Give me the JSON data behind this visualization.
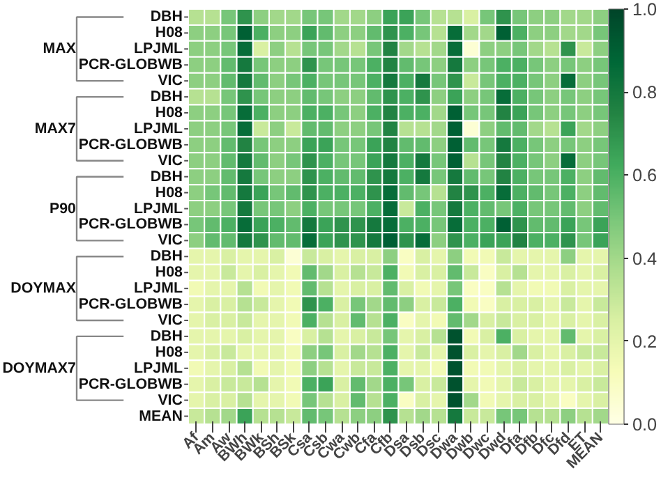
{
  "chart_data": {
    "type": "heatmap",
    "categories": [
      "Af",
      "Am",
      "Aw",
      "BWh",
      "BWk",
      "BSh",
      "BSk",
      "Csa",
      "Csb",
      "Cwa",
      "Cwb",
      "Cfa",
      "Cfb",
      "Dsa",
      "Dsb",
      "Dsc",
      "Dwa",
      "Dwb",
      "Dwc",
      "Dwd",
      "Dfa",
      "Dfb",
      "Dfc",
      "Dfd",
      "ET",
      "MEAN"
    ],
    "y_categories": [
      "DBH",
      "H08",
      "LPJML",
      "PCR-GLOBWB",
      "VIC",
      "DBH",
      "H08",
      "LPJML",
      "PCR-GLOBWB",
      "VIC",
      "DBH",
      "H08",
      "LPJML",
      "PCR-GLOBWB",
      "VIC",
      "DBH",
      "H08",
      "LPJML",
      "PCR-GLOBWB",
      "VIC",
      "DBH",
      "H08",
      "LPJML",
      "PCR-GLOBWB",
      "VIC",
      "MEAN"
    ],
    "annotations": [
      "MAX",
      "MAX7",
      "P90",
      "DOYMAX",
      "DOYMAX7"
    ],
    "cells": [
      [
        0.35,
        0.35,
        0.5,
        0.7,
        0.45,
        0.4,
        0.4,
        0.5,
        0.5,
        0.4,
        0.4,
        0.45,
        0.65,
        0.65,
        0.5,
        0.35,
        0.35,
        0.25,
        0.5,
        0.7,
        0.5,
        0.45,
        0.45,
        0.4,
        0.4,
        0.45
      ],
      [
        0.45,
        0.45,
        0.5,
        0.9,
        0.6,
        0.45,
        0.45,
        0.65,
        0.55,
        0.45,
        0.45,
        0.55,
        0.7,
        0.6,
        0.5,
        0.35,
        0.85,
        0.4,
        0.4,
        0.9,
        0.6,
        0.45,
        0.45,
        0.4,
        0.4,
        0.5
      ],
      [
        0.45,
        0.45,
        0.5,
        0.85,
        0.25,
        0.45,
        0.35,
        0.5,
        0.5,
        0.4,
        0.35,
        0.5,
        0.75,
        0.4,
        0.35,
        0.4,
        0.85,
        0.05,
        0.45,
        0.45,
        0.5,
        0.4,
        0.35,
        0.7,
        0.3,
        0.45
      ],
      [
        0.45,
        0.45,
        0.55,
        0.8,
        0.5,
        0.45,
        0.45,
        0.7,
        0.5,
        0.5,
        0.5,
        0.6,
        0.75,
        0.55,
        0.5,
        0.45,
        0.8,
        0.45,
        0.5,
        0.6,
        0.6,
        0.5,
        0.45,
        0.5,
        0.45,
        0.5
      ],
      [
        0.45,
        0.45,
        0.55,
        0.8,
        0.55,
        0.45,
        0.5,
        0.6,
        0.5,
        0.5,
        0.5,
        0.6,
        0.8,
        0.6,
        0.8,
        0.5,
        0.7,
        0.3,
        0.5,
        0.6,
        0.6,
        0.5,
        0.45,
        0.85,
        0.45,
        0.5
      ],
      [
        0.35,
        0.35,
        0.5,
        0.7,
        0.5,
        0.45,
        0.45,
        0.55,
        0.5,
        0.45,
        0.45,
        0.55,
        0.7,
        0.6,
        0.7,
        0.45,
        0.65,
        0.45,
        0.5,
        0.85,
        0.6,
        0.5,
        0.45,
        0.5,
        0.45,
        0.5
      ],
      [
        0.45,
        0.45,
        0.5,
        0.85,
        0.6,
        0.45,
        0.45,
        0.6,
        0.6,
        0.5,
        0.45,
        0.6,
        0.75,
        0.6,
        0.6,
        0.4,
        0.9,
        0.5,
        0.5,
        0.75,
        0.65,
        0.5,
        0.45,
        0.5,
        0.45,
        0.5
      ],
      [
        0.45,
        0.45,
        0.5,
        0.85,
        0.3,
        0.45,
        0.3,
        0.55,
        0.55,
        0.45,
        0.45,
        0.5,
        0.75,
        0.35,
        0.35,
        0.4,
        0.9,
        0.05,
        0.45,
        0.55,
        0.55,
        0.4,
        0.35,
        0.65,
        0.4,
        0.45
      ],
      [
        0.45,
        0.45,
        0.55,
        0.75,
        0.5,
        0.45,
        0.45,
        0.65,
        0.65,
        0.5,
        0.5,
        0.65,
        0.75,
        0.55,
        0.55,
        0.45,
        0.9,
        0.55,
        0.5,
        0.8,
        0.6,
        0.5,
        0.45,
        0.5,
        0.45,
        0.5
      ],
      [
        0.45,
        0.45,
        0.55,
        0.8,
        0.55,
        0.45,
        0.5,
        0.7,
        0.6,
        0.5,
        0.5,
        0.65,
        0.8,
        0.6,
        0.8,
        0.5,
        0.9,
        0.35,
        0.5,
        0.75,
        0.6,
        0.5,
        0.45,
        0.85,
        0.45,
        0.5
      ],
      [
        0.45,
        0.45,
        0.55,
        0.8,
        0.5,
        0.45,
        0.45,
        0.7,
        0.6,
        0.55,
        0.55,
        0.7,
        0.8,
        0.6,
        0.8,
        0.5,
        0.8,
        0.55,
        0.5,
        0.75,
        0.6,
        0.5,
        0.5,
        0.6,
        0.45,
        0.55
      ],
      [
        0.45,
        0.5,
        0.55,
        0.8,
        0.65,
        0.5,
        0.55,
        0.7,
        0.6,
        0.6,
        0.6,
        0.7,
        0.85,
        0.55,
        0.5,
        0.35,
        0.75,
        0.7,
        0.6,
        0.85,
        0.6,
        0.55,
        0.5,
        0.6,
        0.45,
        0.55
      ],
      [
        0.45,
        0.45,
        0.5,
        0.8,
        0.5,
        0.5,
        0.45,
        0.6,
        0.5,
        0.5,
        0.5,
        0.6,
        0.85,
        0.3,
        0.6,
        0.5,
        0.8,
        0.6,
        0.55,
        0.5,
        0.6,
        0.5,
        0.5,
        0.55,
        0.45,
        0.55
      ],
      [
        0.5,
        0.55,
        0.6,
        0.85,
        0.65,
        0.6,
        0.55,
        0.8,
        0.65,
        0.7,
        0.7,
        0.8,
        0.85,
        0.6,
        0.6,
        0.5,
        0.85,
        0.6,
        0.6,
        0.9,
        0.7,
        0.55,
        0.55,
        0.65,
        0.5,
        0.65
      ],
      [
        0.45,
        0.55,
        0.55,
        0.8,
        0.7,
        0.55,
        0.55,
        0.85,
        0.65,
        0.7,
        0.7,
        0.8,
        0.9,
        0.7,
        0.85,
        0.45,
        0.7,
        0.6,
        0.65,
        0.65,
        0.75,
        0.6,
        0.6,
        0.7,
        0.5,
        0.65
      ],
      [
        0.2,
        0.2,
        0.25,
        0.2,
        0.2,
        0.25,
        0.05,
        0.3,
        0.25,
        0.2,
        0.25,
        0.25,
        0.45,
        0.1,
        0.25,
        0.2,
        0.45,
        0.15,
        0.15,
        0.3,
        0.2,
        0.2,
        0.2,
        0.45,
        0.2,
        0.2
      ],
      [
        0.2,
        0.2,
        0.3,
        0.2,
        0.25,
        0.2,
        0.15,
        0.55,
        0.4,
        0.25,
        0.35,
        0.3,
        0.6,
        0.15,
        0.25,
        0.25,
        0.55,
        0.3,
        0.1,
        0.25,
        0.35,
        0.2,
        0.2,
        0.25,
        0.2,
        0.25
      ],
      [
        0.15,
        0.2,
        0.2,
        0.35,
        0.15,
        0.2,
        0.15,
        0.55,
        0.35,
        0.2,
        0.25,
        0.25,
        0.55,
        0.25,
        0.15,
        0.2,
        0.5,
        0.1,
        0.1,
        0.35,
        0.2,
        0.15,
        0.15,
        0.25,
        0.2,
        0.2
      ],
      [
        0.2,
        0.25,
        0.25,
        0.35,
        0.3,
        0.2,
        0.15,
        0.7,
        0.6,
        0.25,
        0.5,
        0.4,
        0.55,
        0.45,
        0.25,
        0.3,
        0.6,
        0.15,
        0.1,
        0.25,
        0.25,
        0.25,
        0.2,
        0.3,
        0.2,
        0.3
      ],
      [
        0.2,
        0.25,
        0.25,
        0.3,
        0.2,
        0.2,
        0.15,
        0.6,
        0.35,
        0.25,
        0.55,
        0.35,
        0.6,
        0.1,
        0.2,
        0.15,
        0.55,
        0.4,
        0.25,
        0.3,
        0.25,
        0.25,
        0.2,
        0.25,
        0.2,
        0.25
      ],
      [
        0.2,
        0.2,
        0.2,
        0.25,
        0.2,
        0.2,
        0.1,
        0.25,
        0.35,
        0.2,
        0.25,
        0.3,
        0.5,
        0.2,
        0.25,
        0.35,
        0.95,
        0.15,
        0.25,
        0.6,
        0.25,
        0.2,
        0.2,
        0.55,
        0.2,
        0.25
      ],
      [
        0.2,
        0.25,
        0.3,
        0.2,
        0.2,
        0.2,
        0.15,
        0.45,
        0.5,
        0.25,
        0.4,
        0.35,
        0.6,
        0.2,
        0.3,
        0.2,
        0.95,
        0.25,
        0.2,
        0.25,
        0.4,
        0.25,
        0.2,
        0.25,
        0.3,
        0.3
      ],
      [
        0.15,
        0.2,
        0.25,
        0.35,
        0.15,
        0.2,
        0.15,
        0.45,
        0.35,
        0.2,
        0.3,
        0.3,
        0.6,
        0.2,
        0.2,
        0.15,
        0.95,
        0.15,
        0.15,
        0.2,
        0.25,
        0.2,
        0.2,
        0.25,
        0.2,
        0.25
      ],
      [
        0.2,
        0.25,
        0.3,
        0.3,
        0.35,
        0.2,
        0.15,
        0.6,
        0.65,
        0.25,
        0.55,
        0.4,
        0.6,
        0.5,
        0.25,
        0.3,
        0.95,
        0.2,
        0.15,
        0.2,
        0.3,
        0.25,
        0.2,
        0.2,
        0.25,
        0.3
      ],
      [
        0.2,
        0.25,
        0.25,
        0.35,
        0.2,
        0.2,
        0.15,
        0.5,
        0.35,
        0.25,
        0.55,
        0.35,
        0.6,
        0.1,
        0.25,
        0.2,
        0.95,
        0.4,
        0.15,
        0.2,
        0.25,
        0.25,
        0.2,
        0.1,
        0.2,
        0.25
      ],
      [
        0.3,
        0.35,
        0.4,
        0.65,
        0.35,
        0.35,
        0.3,
        0.55,
        0.5,
        0.35,
        0.45,
        0.45,
        0.7,
        0.35,
        0.4,
        0.35,
        0.8,
        0.3,
        0.3,
        0.5,
        0.5,
        0.35,
        0.35,
        0.45,
        0.35,
        0.4
      ]
    ],
    "clim": [
      0,
      1
    ],
    "cticks": [
      {
        "value": 0,
        "label": "0.0"
      },
      {
        "value": 0.2,
        "label": "0.2"
      },
      {
        "value": 0.4,
        "label": "0.4"
      },
      {
        "value": 0.6,
        "label": "0.6"
      },
      {
        "value": 0.8,
        "label": "0.8"
      },
      {
        "value": 1,
        "label": "1.0"
      }
    ]
  }
}
